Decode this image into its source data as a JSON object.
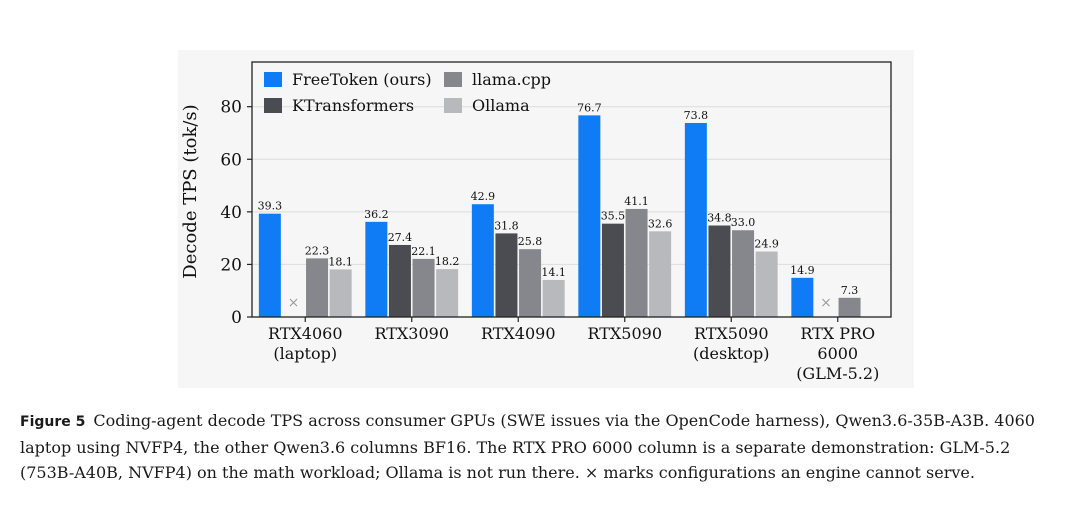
{
  "chart_data": {
    "type": "bar",
    "ylabel": "Decode TPS (tok/s)",
    "ylim": [
      0,
      97
    ],
    "yticks": [
      0,
      20,
      40,
      60,
      80
    ],
    "grid": "horizontal",
    "legend_placement": "top-left",
    "categories": [
      [
        "RTX4060",
        "(laptop)"
      ],
      [
        "RTX3090"
      ],
      [
        "RTX4090"
      ],
      [
        "RTX5090"
      ],
      [
        "RTX5090",
        "(desktop)"
      ],
      [
        "RTX PRO",
        "6000",
        "(GLM-5.2)"
      ]
    ],
    "series": [
      {
        "name": "FreeToken (ours)",
        "color": "#0f7cf5",
        "values": [
          39.3,
          36.2,
          42.9,
          76.7,
          73.8,
          14.9
        ],
        "labels": [
          "39.3",
          "36.2",
          "42.9",
          "76.7",
          "73.8",
          "14.9"
        ]
      },
      {
        "name": "KTransformers",
        "color": "#4a4c52",
        "values": [
          null,
          27.4,
          31.8,
          35.5,
          34.8,
          null
        ],
        "labels": [
          "",
          "27.4",
          "31.8",
          "35.5",
          "34.8",
          ""
        ]
      },
      {
        "name": "llama.cpp",
        "color": "#85878c",
        "values": [
          22.3,
          22.1,
          25.8,
          41.1,
          33.0,
          7.3
        ],
        "labels": [
          "22.3",
          "22.1",
          "25.8",
          "41.1",
          "33.0",
          "7.3"
        ]
      },
      {
        "name": "Ollama",
        "color": "#b8b9bc",
        "values": [
          18.1,
          18.2,
          14.1,
          32.6,
          24.9,
          null
        ],
        "labels": [
          "18.1",
          "18.2",
          "14.1",
          "32.6",
          "24.9",
          ""
        ]
      }
    ],
    "unserved_marker": "×",
    "unserved": [
      {
        "category": 0,
        "series": 1
      },
      {
        "category": 5,
        "series": 1
      }
    ]
  },
  "caption": {
    "label": "Figure 5",
    "text": "Coding-agent decode TPS across consumer GPUs (SWE issues via the OpenCode harness), Qwen3.6-35B-A3B. 4060 laptop using NVFP4, the other Qwen3.6 columns BF16. The RTX PRO 6000 column is a separate demonstration: GLM-5.2 (753B-A40B, NVFP4) on the math workload; Ollama is not run there. × marks configurations an engine cannot serve."
  }
}
